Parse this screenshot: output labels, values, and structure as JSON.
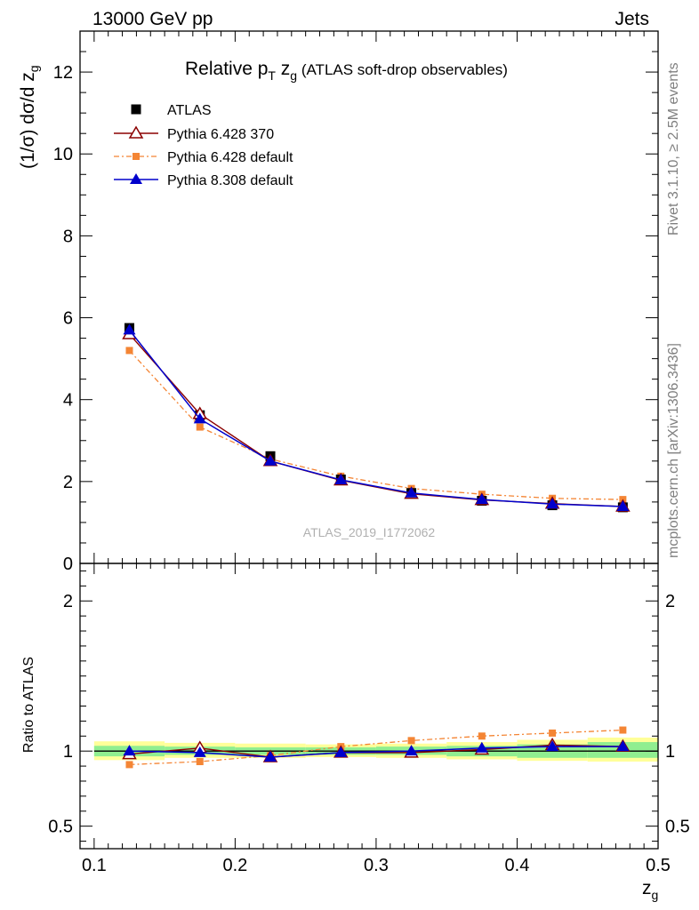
{
  "header": {
    "left": "13000 GeV pp",
    "right": "Jets"
  },
  "title": {
    "main": "Relative p",
    "sub_T": "T",
    "mid": " z",
    "sub_g": "g",
    "paren": " (ATLAS soft-drop observables)"
  },
  "side_labels": {
    "rivet": "Rivet 3.1.10, ≥ 2.5M events",
    "mcplots": "mcplots.cern.ch [arXiv:1306.3436]"
  },
  "watermark": "ATLAS_2019_I1772062",
  "colors": {
    "atlas": "#000000",
    "py6_370": "#8b0000",
    "py6_default": "#f48534",
    "py8_default": "#0000cc",
    "band_inner": "#90ee90",
    "band_outer": "#ffff99"
  },
  "chart_data": [
    {
      "type": "line",
      "panel": "main",
      "ylabel_prefix": "(1/σ) dσ/d z",
      "ylabel_sub": "g",
      "ylim": [
        0,
        13
      ],
      "xlim": [
        0.09,
        0.5
      ],
      "yticks": [
        "0",
        "2",
        "4",
        "6",
        "8",
        "10",
        "12"
      ],
      "legend_position": "top-left",
      "x": [
        0.125,
        0.175,
        0.225,
        0.275,
        0.325,
        0.375,
        0.425,
        0.475
      ],
      "series": [
        {
          "name": "ATLAS",
          "marker": "square",
          "values": [
            5.75,
            3.62,
            2.62,
            2.05,
            1.72,
            1.53,
            1.42,
            1.37
          ]
        },
        {
          "name": "Pythia 6.428 370",
          "marker": "triangle-open",
          "values": [
            5.6,
            3.65,
            2.5,
            2.03,
            1.7,
            1.55,
            1.46,
            1.39
          ]
        },
        {
          "name": "Pythia 6.428 default",
          "marker": "square-small",
          "values": [
            5.2,
            3.33,
            2.55,
            2.13,
            1.83,
            1.69,
            1.59,
            1.56
          ]
        },
        {
          "name": "Pythia 8.308 default",
          "marker": "triangle-filled",
          "values": [
            5.7,
            3.53,
            2.5,
            2.04,
            1.72,
            1.56,
            1.45,
            1.39
          ]
        }
      ]
    },
    {
      "type": "line",
      "panel": "ratio",
      "ylabel": "Ratio to ATLAS",
      "ylim": [
        0.35,
        2.25
      ],
      "xlim": [
        0.09,
        0.5
      ],
      "xlabel_main": "z",
      "xlabel_sub": "g",
      "xticks": [
        "0.1",
        "0.2",
        "0.3",
        "0.4",
        "0.5"
      ],
      "yticks": [
        "0.5",
        "1",
        "2"
      ],
      "x": [
        0.125,
        0.175,
        0.225,
        0.275,
        0.325,
        0.375,
        0.425,
        0.475
      ],
      "band_inner": [
        [
          0.965,
          1.035
        ],
        [
          0.975,
          1.03
        ],
        [
          0.975,
          1.025
        ],
        [
          0.975,
          1.025
        ],
        [
          0.975,
          1.03
        ],
        [
          0.965,
          1.035
        ],
        [
          0.955,
          1.045
        ],
        [
          0.955,
          1.06
        ]
      ],
      "band_outer": [
        [
          0.94,
          1.065
        ],
        [
          0.955,
          1.055
        ],
        [
          0.955,
          1.05
        ],
        [
          0.96,
          1.045
        ],
        [
          0.955,
          1.05
        ],
        [
          0.945,
          1.06
        ],
        [
          0.935,
          1.075
        ],
        [
          0.93,
          1.09
        ]
      ],
      "series": [
        {
          "name": "Pythia 6.428 370",
          "marker": "triangle-open",
          "values": [
            0.98,
            1.02,
            0.96,
            0.99,
            0.99,
            1.01,
            1.04,
            1.03
          ]
        },
        {
          "name": "Pythia 6.428 default",
          "marker": "square-small",
          "values": [
            0.91,
            0.93,
            0.97,
            1.03,
            1.07,
            1.1,
            1.12,
            1.14
          ]
        },
        {
          "name": "Pythia 8.308 default",
          "marker": "triangle-filled",
          "values": [
            1.0,
            0.99,
            0.96,
            0.99,
            1.0,
            1.02,
            1.03,
            1.03
          ]
        }
      ]
    }
  ]
}
